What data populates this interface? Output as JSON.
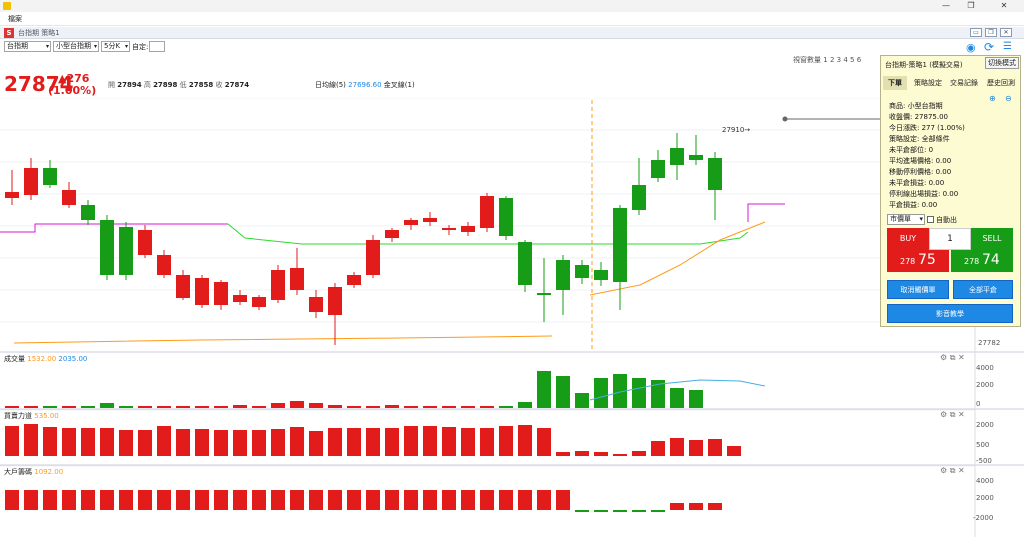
{
  "app": {
    "menu_label": "檔案",
    "subtitle": "台指期 策略1",
    "window_buttons": [
      "—",
      "❐",
      "✕"
    ]
  },
  "toolbar": {
    "symbol": "台指期",
    "product": "小型台指期",
    "interval": "5分K",
    "custom_label": "自定:",
    "custom_value": ""
  },
  "window_count": {
    "label": "視窗數量",
    "numbers": [
      "1",
      "2",
      "3",
      "4",
      "5",
      "6"
    ]
  },
  "quote": {
    "price": "27874",
    "change": "▲276",
    "change_pct": "(1.00%)",
    "open_label": "開",
    "open": "27894",
    "high_label": "高",
    "high": "27898",
    "low_label": "低",
    "low": "27858",
    "close_label": "收",
    "close": "27874",
    "ma_label": "日均線(5)",
    "ma_value": "27696.60",
    "golden_label": "金叉線(1)"
  },
  "chart": {
    "peak_label": "27910→",
    "right_axis_bottom": "27782",
    "volume_title": "成交量",
    "volume_v1": "1532.00",
    "volume_v2": "2035.00",
    "volume_ticks": [
      "4000",
      "2000",
      "0"
    ],
    "bs_title": "買賣力道",
    "bs_value": "535.00",
    "bs_ticks": [
      "2000",
      "500",
      "-500"
    ],
    "big_title": "大戶籌碼",
    "big_value": "1092.00",
    "big_ticks": [
      "4000",
      "2000",
      "-2000"
    ],
    "colors": {
      "up": "#e21b1b",
      "down": "#169c16",
      "ma": "#ff9a1a",
      "pink": "#d61ad6",
      "green_line": "#2fd92f",
      "blue_line": "#46aee0"
    }
  },
  "panel": {
    "header": "台指期-策略1 (模擬交易)",
    "switch_button": "切換模式",
    "tabs": [
      "下單",
      "策略設定",
      "交易記錄",
      "歷史回測"
    ],
    "info": [
      "商品: 小型台指期",
      "收盤價: 27875.00",
      "今日漲跌: 277 (1.00%)",
      "策略設定: 全部條件",
      "未平倉部位: 0",
      "平均進場價格: 0.00",
      "移動停利價格: 0.00",
      "未平倉損益: 0.00",
      "停利線出場損益: 0.00",
      "平倉損益: 0.00"
    ],
    "order_type": "市價單",
    "auto_label": "自動出",
    "buy_label": "BUY",
    "sell_label": "SELL",
    "quantity": "1",
    "buy_price_small": "278",
    "buy_price_big": "75",
    "sell_price_small": "278",
    "sell_price_big": "74",
    "cancel_button": "取消觸價單",
    "close_all_button": "全部平倉",
    "video_button": "影音教學"
  }
}
